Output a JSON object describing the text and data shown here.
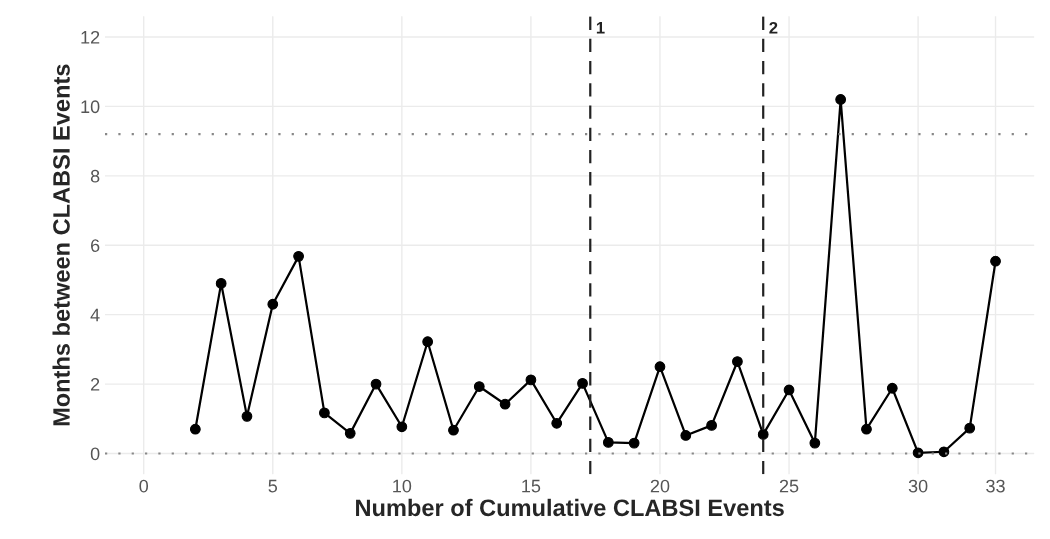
{
  "chart_data": {
    "type": "line",
    "xlabel": "Number of Cumulative CLABSI Events",
    "ylabel": "Months between CLABSI Events",
    "x": [
      2,
      3,
      4,
      5,
      6,
      7,
      8,
      9,
      10,
      11,
      12,
      13,
      14,
      15,
      16,
      17,
      18,
      19,
      20,
      21,
      22,
      23,
      24,
      25,
      26,
      27,
      28,
      29,
      30,
      31,
      32,
      33
    ],
    "series": [
      {
        "color": "#000000",
        "values": [
          0.7,
          4.9,
          1.07,
          4.3,
          5.68,
          1.17,
          0.58,
          2.0,
          0.77,
          3.22,
          0.67,
          1.93,
          1.42,
          2.12,
          0.87,
          2.02,
          0.32,
          0.3,
          2.5,
          0.52,
          0.81,
          2.65,
          0.55,
          1.83,
          0.3,
          10.2,
          0.7,
          1.88,
          0.02,
          0.05,
          0.73,
          5.54
        ]
      }
    ],
    "marker": "circle",
    "line_style": "solid",
    "grid": true,
    "legend": false,
    "xlim": [
      -1.5,
      34.5
    ],
    "ylim": [
      -0.6,
      12.6
    ],
    "xticks": [
      0,
      5,
      10,
      15,
      20,
      25,
      30,
      33
    ],
    "yticks": [
      0,
      2,
      4,
      6,
      8,
      10,
      12
    ],
    "ref_lines": [
      {
        "axis": "y",
        "value": 9.2,
        "line_style": "dotted",
        "color": "#888888"
      },
      {
        "axis": "y",
        "value": 0,
        "line_style": "dotted",
        "color": "#888888"
      },
      {
        "axis": "x",
        "value": 17.3,
        "line_style": "dashed",
        "color": "#222222"
      },
      {
        "axis": "x",
        "value": 24.0,
        "line_style": "dashed",
        "color": "#222222"
      }
    ],
    "annotations": [
      {
        "text": "1",
        "x": 17.3,
        "y": 12
      },
      {
        "text": "2",
        "x": 24.0,
        "y": 12
      }
    ]
  }
}
